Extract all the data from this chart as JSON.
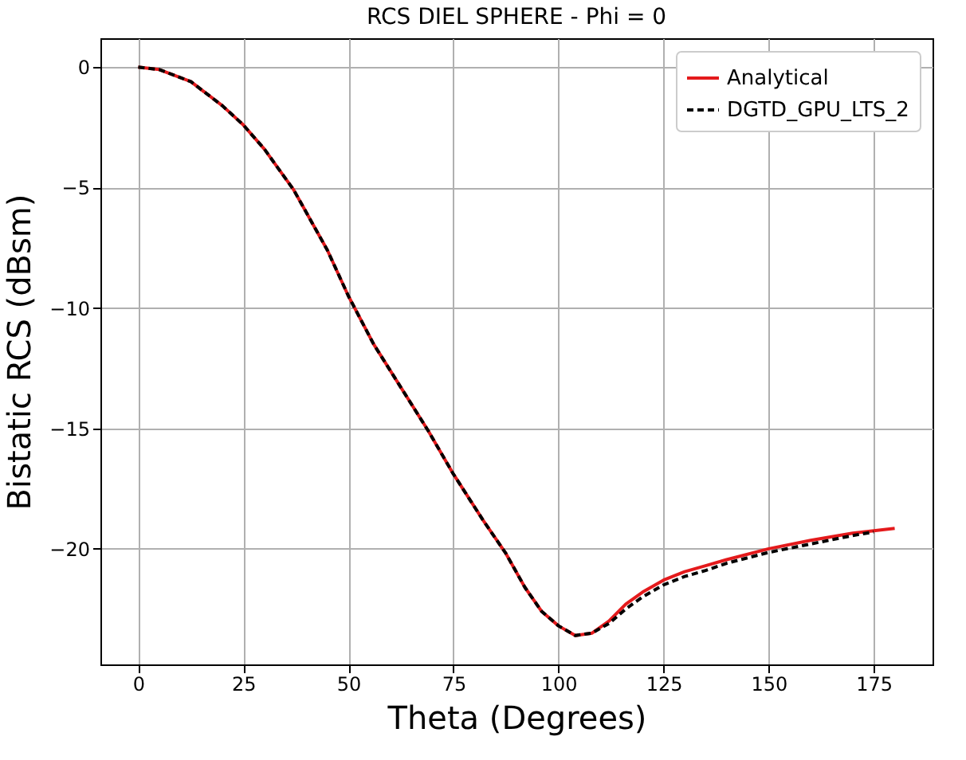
{
  "chart_data": {
    "type": "line",
    "title": "RCS DIEL SPHERE - Phi = 0",
    "xlabel": "Theta (Degrees)",
    "ylabel": "Bistatic RCS (dBsm)",
    "x": [
      0,
      5,
      12.5,
      20,
      25,
      30,
      37,
      45,
      50,
      56,
      62.5,
      69,
      75,
      82,
      87.5,
      92,
      96,
      100,
      104,
      108,
      112,
      116,
      120,
      125,
      130,
      135,
      140,
      150,
      160,
      170,
      175,
      180
    ],
    "series": [
      {
        "name": "Analytical",
        "color": "#e41a1c",
        "line_style": "solid",
        "values": [
          0,
          -0.1,
          -0.6,
          -1.6,
          -2.4,
          -3.4,
          -5.1,
          -7.6,
          -9.5,
          -11.5,
          -13.3,
          -15.1,
          -16.9,
          -18.8,
          -20.2,
          -21.6,
          -22.6,
          -23.2,
          -23.6,
          -23.5,
          -23.0,
          -22.3,
          -21.8,
          -21.3,
          -20.95,
          -20.7,
          -20.45,
          -20.0,
          -19.65,
          -19.35,
          -19.25,
          -19.15
        ]
      },
      {
        "name": "DGTD_GPU_LTS_2",
        "color": "#000000",
        "line_style": "dashed",
        "values": [
          0,
          -0.1,
          -0.6,
          -1.6,
          -2.4,
          -3.4,
          -5.1,
          -7.6,
          -9.5,
          -11.5,
          -13.3,
          -15.1,
          -16.9,
          -18.8,
          -20.2,
          -21.6,
          -22.6,
          -23.2,
          -23.6,
          -23.5,
          -23.1,
          -22.5,
          -22.0,
          -21.5,
          -21.15,
          -20.9,
          -20.6,
          -20.15,
          -19.8,
          -19.45,
          -19.3,
          null
        ]
      }
    ],
    "xlim": [
      -9,
      189
    ],
    "ylim": [
      -24.8,
      1.2
    ],
    "xticks": [
      0,
      25,
      50,
      75,
      100,
      125,
      150,
      175
    ],
    "yticks": [
      -20,
      -15,
      -10,
      -5,
      0
    ],
    "grid": true,
    "legend": "top right",
    "marker": "none"
  }
}
